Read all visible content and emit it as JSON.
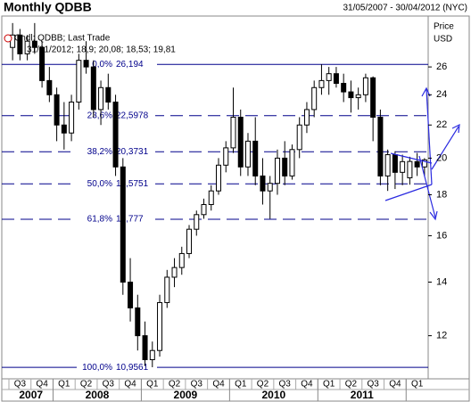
{
  "chart_data": {
    "type": "candlestick",
    "title": "Monthly QDBB",
    "subtitle": "31/05/2007 - 30/04/2012 (NYC)",
    "legend": "Cndl; QDBB; Last Trade",
    "last_trade": "31/01/2012; 18,9; 20,08; 18,53; 19,81",
    "y_axis_label": "Price",
    "y_axis_unit": "USD",
    "log_scale": true,
    "ylim": [
      10.6,
      30.1
    ],
    "yticks": [
      12,
      14,
      16,
      18,
      20,
      22,
      24,
      26
    ],
    "categories": [
      "Q3",
      "Q4",
      "Q1",
      "Q2",
      "Q3",
      "Q4",
      "Q1",
      "Q2",
      "Q3",
      "Q4",
      "Q1",
      "Q2",
      "Q3",
      "Q4",
      "Q1",
      "Q2",
      "Q3",
      "Q4",
      "Q1"
    ],
    "years": [
      "2007",
      "2008",
      "2009",
      "2010",
      "2011"
    ],
    "fib_levels": [
      {
        "percent": "0,0%",
        "value": 26.194,
        "label": "26,194"
      },
      {
        "percent": "23,6%",
        "value": 22.5978,
        "label": "22,5978"
      },
      {
        "percent": "38,2%",
        "value": 20.3731,
        "label": "20,3731"
      },
      {
        "percent": "50,0%",
        "value": 18.5751,
        "label": "18,5751"
      },
      {
        "percent": "61,8%",
        "value": 16.7771,
        "label": "16,777"
      },
      {
        "percent": "100,0%",
        "value": 10.9561,
        "label": "10,9561"
      }
    ],
    "series": [
      {
        "name": "QDBB",
        "open": [
          27.5,
          28.5,
          27,
          28,
          27.5,
          25,
          24,
          22,
          21.5,
          23.5,
          26.5,
          26,
          23,
          24.5,
          23.5,
          19.5,
          14,
          13,
          12,
          11.2,
          11.5,
          13.2,
          14.2,
          14.6,
          15.2,
          16.3,
          17,
          17.5,
          18.2,
          19.6,
          20.6,
          22.5,
          19.5,
          21,
          19,
          18.2,
          18.6,
          20,
          19,
          20.5,
          22,
          23,
          24.5,
          25,
          25.5,
          24.8,
          24.2,
          23.8,
          24,
          25.2,
          22.5,
          19,
          20.2,
          19.2,
          18.9,
          19.8,
          19.5
        ],
        "high": [
          29.5,
          29,
          28.5,
          29.5,
          28,
          26,
          24.5,
          23.5,
          24,
          27,
          28,
          26.5,
          25,
          25.5,
          24,
          20,
          15,
          13.5,
          12.5,
          11.8,
          13.5,
          14.5,
          15,
          15.5,
          16.5,
          17.2,
          17.8,
          18.5,
          20,
          21,
          24.5,
          23,
          21.5,
          22.5,
          20,
          19,
          20.5,
          21,
          20.8,
          22.5,
          23.5,
          25,
          26.2,
          26,
          26,
          25.5,
          25,
          24.5,
          25.5,
          25.3,
          23,
          20.5,
          20.4,
          20.2,
          20.08,
          20.3,
          20
        ],
        "low": [
          26.5,
          26.5,
          26.5,
          27,
          24.5,
          23.5,
          21,
          20.5,
          21,
          23,
          25.5,
          22.5,
          22,
          23,
          19,
          13.5,
          12.5,
          11.5,
          11,
          10.96,
          11.3,
          13,
          13.8,
          14.3,
          15,
          16,
          16.8,
          17.2,
          18,
          19.2,
          20.3,
          19,
          19,
          18.5,
          17.5,
          16.8,
          18,
          18.5,
          18.8,
          20,
          21.5,
          22.5,
          24,
          24,
          24.5,
          23.5,
          22.8,
          23,
          23.5,
          21,
          18.5,
          18.2,
          18.3,
          18.5,
          18.53,
          19,
          19
        ],
        "close": [
          28.5,
          27,
          28,
          27.5,
          25,
          24,
          22,
          21.5,
          23.5,
          26.5,
          26,
          23,
          24.5,
          23.5,
          19.5,
          14,
          13,
          12,
          11.2,
          11.5,
          13.2,
          14.2,
          14.6,
          15.2,
          16.3,
          17,
          17.5,
          18.2,
          19.6,
          20.6,
          22.5,
          19.5,
          21,
          19,
          18.2,
          18.6,
          20,
          19,
          20.5,
          22,
          23,
          24.5,
          25,
          25.5,
          24.8,
          24.2,
          23.8,
          24,
          25.2,
          22.5,
          19,
          20.2,
          19.2,
          19.8,
          19.81,
          19.5,
          19.9
        ]
      }
    ]
  }
}
